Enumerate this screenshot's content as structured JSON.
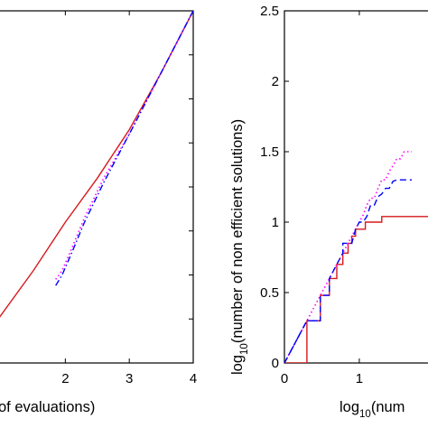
{
  "chart_data": [
    {
      "type": "line",
      "panel": "left",
      "xlabel": "of evaluations)",
      "ylabel": "",
      "xlim": [
        0.95,
        4
      ],
      "ylim": [
        0,
        4
      ],
      "xticks": [
        "2",
        "3",
        "4"
      ],
      "xtick_values": [
        2,
        3,
        4
      ],
      "yticks": [],
      "series": [
        {
          "color": "#d7191c",
          "dash": "solid",
          "x": [
            0.95,
            1.5,
            2.0,
            2.5,
            3.0,
            3.5,
            4.0
          ],
          "y": [
            0.5,
            1.05,
            1.6,
            2.1,
            2.65,
            3.3,
            4.0
          ]
        },
        {
          "color": "#ff00ff",
          "dash": "dotted",
          "x": [
            1.85,
            1.95,
            2.1,
            2.3,
            2.6,
            3.0,
            3.5,
            4.0
          ],
          "y": [
            0.95,
            1.05,
            1.3,
            1.65,
            2.1,
            2.6,
            3.3,
            4.0
          ]
        },
        {
          "color": "#0000ff",
          "dash": "dashdot",
          "x": [
            1.85,
            1.95,
            2.1,
            2.3,
            2.6,
            3.0,
            3.5,
            4.0
          ],
          "y": [
            0.88,
            1.0,
            1.25,
            1.6,
            2.05,
            2.6,
            3.3,
            4.0
          ]
        }
      ]
    },
    {
      "type": "line",
      "panel": "right",
      "xlabel_main": "log",
      "xlabel_sub": "10",
      "xlabel_rest": "(num",
      "ylabel_main": "log",
      "ylabel_sub": "10",
      "ylabel_rest": "(number of non efficient solutions)",
      "xlim": [
        0,
        2.05
      ],
      "ylim": [
        0,
        2.5
      ],
      "xticks": [
        "0",
        "1"
      ],
      "xtick_values": [
        0,
        1
      ],
      "yticks": [
        "0",
        "0.5",
        "1",
        "1.5",
        "2",
        "2.5"
      ],
      "ytick_values": [
        0,
        0.5,
        1,
        1.5,
        2,
        2.5
      ],
      "series": [
        {
          "color": "#d7191c",
          "dash": "solid",
          "x": [
            0,
            0.3,
            0.3,
            0.48,
            0.48,
            0.6,
            0.6,
            0.7,
            0.7,
            0.78,
            0.78,
            0.85,
            0.85,
            0.9,
            0.9,
            0.95,
            0.95,
            1.08,
            1.08,
            1.3,
            1.3,
            1.45,
            1.45,
            1.6,
            1.6,
            1.75,
            1.75,
            2.05
          ],
          "y": [
            0,
            0,
            0.3,
            0.3,
            0.48,
            0.48,
            0.6,
            0.6,
            0.7,
            0.7,
            0.78,
            0.78,
            0.85,
            0.85,
            0.9,
            0.9,
            0.95,
            0.95,
            1.0,
            1.0,
            1.04,
            1.04,
            1.04,
            1.04,
            1.04,
            1.04,
            1.04,
            1.04
          ]
        },
        {
          "color": "#ff00ff",
          "dash": "dotted",
          "x": [
            0,
            0.3,
            0.4,
            0.5,
            0.6,
            0.7,
            0.8,
            0.9,
            1.0,
            1.05,
            1.1,
            1.15,
            1.2,
            1.25,
            1.3,
            1.35,
            1.4,
            1.45,
            1.5,
            1.55,
            1.6,
            1.65,
            1.7
          ],
          "y": [
            0,
            0.3,
            0.4,
            0.5,
            0.6,
            0.7,
            0.8,
            0.9,
            1.0,
            1.05,
            1.12,
            1.17,
            1.17,
            1.24,
            1.3,
            1.3,
            1.36,
            1.4,
            1.45,
            1.45,
            1.5,
            1.5,
            1.5
          ]
        },
        {
          "color": "#0000ff",
          "dash": "dashed",
          "x": [
            0,
            0.3,
            0.3,
            0.4,
            0.48,
            0.48,
            0.6,
            0.6,
            0.7,
            0.78,
            0.78,
            0.9,
            0.95,
            1.0,
            1.05,
            1.1,
            1.15,
            1.2,
            1.25,
            1.3,
            1.35,
            1.4,
            1.45,
            1.5,
            1.55,
            1.6,
            1.65,
            1.7
          ],
          "y": [
            0,
            0.3,
            0.3,
            0.3,
            0.3,
            0.48,
            0.48,
            0.6,
            0.7,
            0.78,
            0.85,
            0.85,
            0.95,
            1.0,
            1.0,
            1.04,
            1.12,
            1.12,
            1.18,
            1.2,
            1.24,
            1.24,
            1.29,
            1.3,
            1.3,
            1.3,
            1.3,
            1.3
          ]
        },
        {
          "color": "#0000ff",
          "dash": "dashdot",
          "x": [
            0,
            0.3,
            0.48
          ],
          "y": [
            0,
            0.3,
            0.3
          ]
        }
      ]
    }
  ]
}
